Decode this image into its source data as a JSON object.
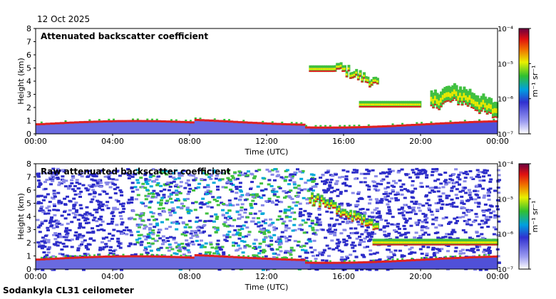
{
  "header": {
    "date": "12 Oct 2025"
  },
  "footer": {
    "station": "Sodankyla CL31 ceilometer"
  },
  "colors": {
    "low": "#ffffff",
    "blue": "#3a3ad8",
    "green": "#3cc83c",
    "yellow": "#f0f000",
    "red": "#e02020",
    "dark": "#700030"
  },
  "chart_data": [
    {
      "type": "heatmap",
      "title": "Attenuated backscatter coefficient",
      "xlabel": "Time (UTC)",
      "ylabel": "Height (km)",
      "xticks": [
        "00:00",
        "04:00",
        "08:00",
        "12:00",
        "16:00",
        "20:00",
        "00:00"
      ],
      "xlim_hours": [
        0,
        24
      ],
      "ylim_km": [
        0,
        8
      ],
      "yticks": [
        "0",
        "1",
        "2",
        "3",
        "4",
        "5",
        "6",
        "7",
        "8"
      ],
      "colorbar": {
        "ticks": [
          "10⁻⁷",
          "10⁻⁶",
          "10⁻⁵",
          "10⁻⁴"
        ],
        "label": "m⁻¹ sr⁻¹",
        "range_log10": [
          -7,
          -4
        ]
      },
      "features": [
        {
          "name": "boundary-layer",
          "t_start": 0,
          "t_end": 24,
          "height_km": 0.8
        },
        {
          "name": "cloud-4.7km",
          "t_start": 14.2,
          "t_end": 15.5,
          "height_km": 4.7
        },
        {
          "name": "cloud-sloped",
          "t_start": 15.5,
          "t_end": 17.8,
          "height_km": 4.0
        },
        {
          "name": "cloud-2km",
          "t_start": 16.8,
          "t_end": 20.0,
          "height_km": 2.0
        },
        {
          "name": "cloud-2km-late",
          "t_start": 20.5,
          "t_end": 24,
          "height_km": 1.8
        }
      ]
    },
    {
      "type": "heatmap",
      "title": "Raw attenuated backscatter coefficient",
      "xlabel": "Time (UTC)",
      "ylabel": "Height (km)",
      "xticks": [
        "00:00",
        "04:00",
        "08:00",
        "12:00",
        "16:00",
        "20:00",
        "00:00"
      ],
      "xlim_hours": [
        0,
        24
      ],
      "ylim_km": [
        0,
        8
      ],
      "yticks": [
        "0",
        "1",
        "2",
        "3",
        "4",
        "5",
        "6",
        "7",
        "8"
      ],
      "colorbar": {
        "ticks": [
          "10⁻⁷",
          "10⁻⁶",
          "10⁻⁵",
          "10⁻⁴"
        ],
        "label": "m⁻¹ sr⁻¹",
        "range_log10": [
          -7,
          -4
        ]
      },
      "features": [
        {
          "name": "noise-band",
          "t_start": 5,
          "t_end": 14.5,
          "height_km": 4
        },
        {
          "name": "boundary-layer",
          "t_start": 0,
          "t_end": 24,
          "height_km": 0.8
        },
        {
          "name": "cloud-sloped",
          "t_start": 14.2,
          "t_end": 17.8,
          "height_km": 4.3
        },
        {
          "name": "cloud-2km",
          "t_start": 17.5,
          "t_end": 24,
          "height_km": 1.8
        }
      ]
    }
  ]
}
